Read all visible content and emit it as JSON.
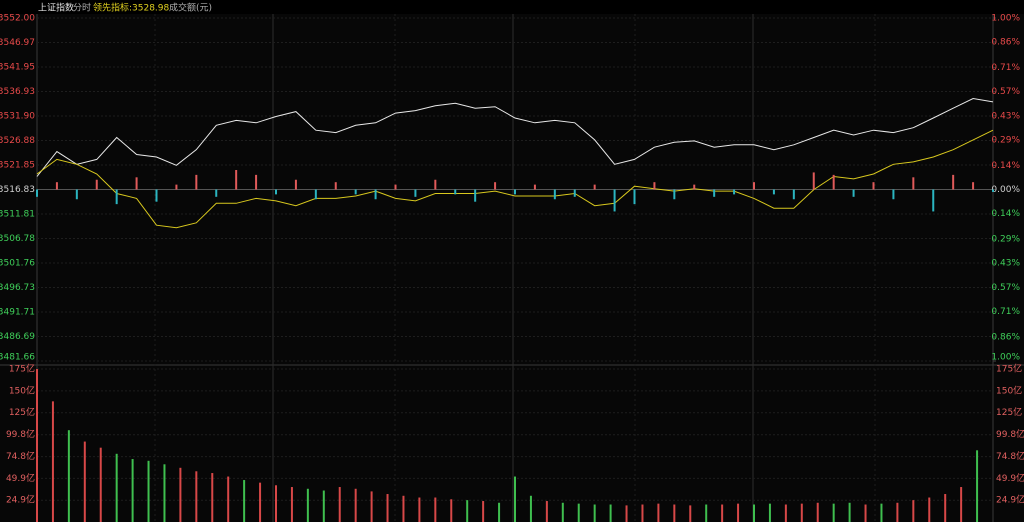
{
  "header": {
    "title": "上证指数",
    "mode": "分时",
    "indicator": "领先指标:3528.98",
    "volume_label": "成交额(元)"
  },
  "chart_data": [
    {
      "type": "line",
      "xlim": [
        0,
        240
      ],
      "x": [
        0,
        5,
        10,
        15,
        20,
        25,
        30,
        35,
        40,
        45,
        50,
        55,
        60,
        65,
        70,
        75,
        80,
        85,
        90,
        95,
        100,
        105,
        110,
        115,
        120,
        125,
        130,
        135,
        140,
        145,
        150,
        155,
        160,
        165,
        170,
        175,
        180,
        185,
        190,
        195,
        200,
        205,
        210,
        215,
        220,
        225,
        230,
        235,
        240
      ],
      "ylim": [
        3481.66,
        3552.0
      ],
      "y2lim": [
        -1,
        1
      ],
      "base": 3516.83,
      "up_color": "#e84a4a",
      "down_color": "#3fcf5a",
      "flat_color": "#d0d0d0",
      "grid": true,
      "yticks": [
        {
          "value": 3552.0,
          "label": "3552.00"
        },
        {
          "value": 3546.97,
          "label": "3546.97"
        },
        {
          "value": 3541.95,
          "label": "3541.95"
        },
        {
          "value": 3536.93,
          "label": "3536.93"
        },
        {
          "value": 3531.9,
          "label": "3531.90"
        },
        {
          "value": 3526.88,
          "label": "3526.88"
        },
        {
          "value": 3521.85,
          "label": "3521.85"
        },
        {
          "value": 3516.83,
          "label": "3516.83"
        },
        {
          "value": 3511.81,
          "label": "3511.81"
        },
        {
          "value": 3506.78,
          "label": "3506.78"
        },
        {
          "value": 3501.76,
          "label": "3501.76"
        },
        {
          "value": 3496.73,
          "label": "3496.73"
        },
        {
          "value": 3491.71,
          "label": "3491.71"
        },
        {
          "value": 3486.69,
          "label": "3486.69"
        },
        {
          "value": 3481.66,
          "label": "3481.66"
        }
      ],
      "y2ticks": [
        {
          "value": 1.0,
          "label": "1.00%"
        },
        {
          "value": 0.86,
          "label": "0.86%"
        },
        {
          "value": 0.71,
          "label": "0.71%"
        },
        {
          "value": 0.57,
          "label": "0.57%"
        },
        {
          "value": 0.43,
          "label": "0.43%"
        },
        {
          "value": 0.29,
          "label": "0.29%"
        },
        {
          "value": 0.14,
          "label": "0.14%"
        },
        {
          "value": 0,
          "label": "0.00%"
        },
        {
          "value": -0.14,
          "label": "0.14%"
        },
        {
          "value": -0.29,
          "label": "0.29%"
        },
        {
          "value": -0.43,
          "label": "0.43%"
        },
        {
          "value": -0.57,
          "label": "0.57%"
        },
        {
          "value": -0.71,
          "label": "0.71%"
        },
        {
          "value": -0.86,
          "label": "0.86%"
        },
        {
          "value": -1.0,
          "label": "1.00%"
        }
      ],
      "series": [
        {
          "color": "#e8e8e8",
          "values": [
            3519.5,
            3524.6,
            3522.0,
            3523.0,
            3527.5,
            3524.0,
            3523.5,
            3521.8,
            3525.0,
            3530.0,
            3531.0,
            3530.5,
            3531.8,
            3532.8,
            3529.0,
            3528.5,
            3530.0,
            3530.5,
            3532.5,
            3533.0,
            3534.0,
            3534.5,
            3533.5,
            3533.8,
            3531.5,
            3530.5,
            3531.0,
            3530.5,
            3527.0,
            3522.0,
            3523.0,
            3525.5,
            3526.5,
            3526.8,
            3525.5,
            3526.0,
            3526.0,
            3525.0,
            3526.0,
            3527.5,
            3529.0,
            3528.0,
            3529.0,
            3528.5,
            3529.5,
            3531.5,
            3533.5,
            3535.5,
            3534.8
          ]
        },
        {
          "color": "#d8c81e",
          "values": [
            3520.0,
            3523.0,
            3522.0,
            3520.0,
            3516.0,
            3515.0,
            3509.5,
            3509.0,
            3510.0,
            3514.0,
            3514.0,
            3515.0,
            3514.5,
            3513.5,
            3515.0,
            3515.0,
            3515.5,
            3516.5,
            3515.0,
            3514.5,
            3516.0,
            3516.0,
            3516.0,
            3516.5,
            3515.5,
            3515.5,
            3515.5,
            3516.0,
            3513.5,
            3514.0,
            3517.5,
            3517.0,
            3516.5,
            3517.0,
            3516.5,
            3516.5,
            3515.0,
            3513.0,
            3513.0,
            3516.8,
            3519.5,
            3519.0,
            3520.0,
            3522.0,
            3522.5,
            3523.5,
            3525.0,
            3527.0,
            3529.0
          ]
        },
        {
          "type": "bar",
          "values": [
            3515.33,
            3518.33,
            3514.83,
            3518.83,
            3513.83,
            3519.33,
            3514.33,
            3517.83,
            3519.83,
            3515.33,
            3520.83,
            3519.83,
            3515.83,
            3518.83,
            3514.83,
            3518.33,
            3515.83,
            3514.83,
            3517.83,
            3515.33,
            3518.83,
            3515.83,
            3514.33,
            3518.33,
            3515.83,
            3517.83,
            3514.83,
            3515.33,
            3517.83,
            3512.33,
            3513.83,
            3518.33,
            3514.83,
            3517.83,
            3515.33,
            3515.83,
            3518.33,
            3515.83,
            3514.83,
            3520.33,
            3519.83,
            3515.33,
            3518.33,
            3514.83,
            3519.33,
            3512.33,
            3519.83,
            3518.33,
            3516.33
          ],
          "up_color": "#e05a5a",
          "down_color": "#2bb5c0"
        }
      ]
    },
    {
      "type": "bar",
      "xlim": [
        0,
        240
      ],
      "x": [
        0,
        4,
        8,
        12,
        16,
        20,
        24,
        28,
        32,
        36,
        40,
        44,
        48,
        52,
        56,
        60,
        64,
        68,
        72,
        76,
        80,
        84,
        88,
        92,
        96,
        100,
        104,
        108,
        112,
        116,
        120,
        124,
        128,
        132,
        136,
        140,
        144,
        148,
        152,
        156,
        160,
        164,
        168,
        172,
        176,
        180,
        184,
        188,
        192,
        196,
        200,
        204,
        208,
        212,
        216,
        220,
        224,
        228,
        232,
        236
      ],
      "values": [
        175,
        138,
        105,
        92,
        85,
        78,
        72,
        70,
        66,
        62,
        58,
        56,
        52,
        48,
        45,
        42,
        40,
        38,
        36,
        40,
        38,
        35,
        32,
        30,
        28,
        28,
        26,
        25,
        24,
        22,
        52,
        30,
        24,
        22,
        21,
        20,
        20,
        19,
        20,
        21,
        20,
        19,
        20,
        20,
        21,
        20,
        21,
        20,
        21,
        22,
        21,
        22,
        20,
        21,
        22,
        25,
        28,
        32,
        40,
        82
      ],
      "ylim": [
        0,
        175
      ],
      "up_color": "#d84848",
      "down_color": "#3fbf4f",
      "label_color": "#e06060",
      "grid": true,
      "yticks": [
        {
          "value": 175,
          "label": "175亿"
        },
        {
          "value": 150,
          "label": "150亿"
        },
        {
          "value": 125,
          "label": "125亿"
        },
        {
          "value": 99.8,
          "label": "99.8亿"
        },
        {
          "value": 74.8,
          "label": "74.8亿"
        },
        {
          "value": 49.9,
          "label": "49.9亿"
        },
        {
          "value": 24.9,
          "label": "24.9亿"
        }
      ]
    }
  ]
}
